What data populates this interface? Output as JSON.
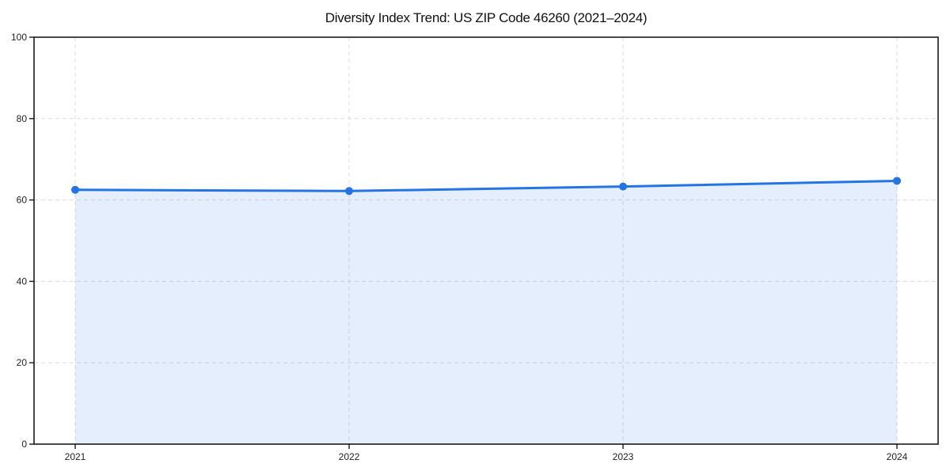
{
  "chart_data": {
    "type": "line",
    "title": "Diversity Index Trend: US ZIP Code 46260 (2021–2024)",
    "categories": [
      "2021",
      "2022",
      "2023",
      "2024"
    ],
    "series": [
      {
        "name": "Diversity Index",
        "values": [
          62.5,
          62.2,
          63.3,
          64.7
        ]
      }
    ],
    "xlabel": "",
    "ylabel": "",
    "ylim": [
      0,
      100
    ],
    "yticks": [
      0,
      20,
      40,
      60,
      80,
      100
    ],
    "grid": true,
    "grid_style": "dashed",
    "area_fill": true,
    "legend_position": "none",
    "colors": {
      "line": "#2474e4",
      "marker": "#2474e4",
      "area_fill": "rgba(36,116,228,0.12)",
      "grid": "#dcdcdc",
      "axis": "#1a1a1a",
      "tick_label": "#222222",
      "title": "#111111",
      "background": "#ffffff"
    }
  }
}
